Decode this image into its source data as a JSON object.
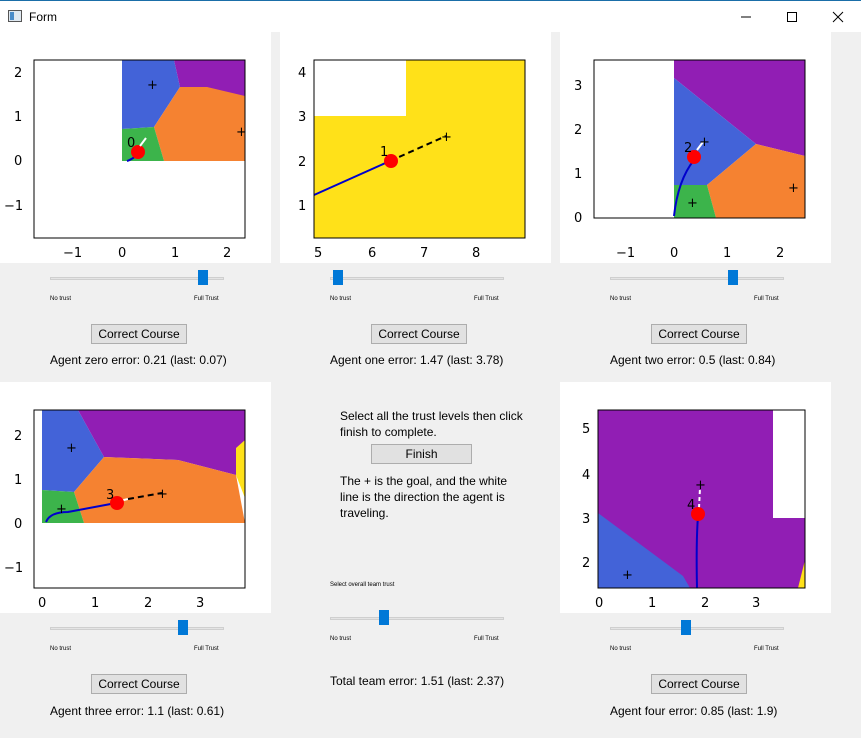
{
  "window": {
    "title": "Form",
    "minimize_icon": "minimize-icon",
    "maximize_icon": "maximize-icon",
    "close_icon": "close-icon"
  },
  "agents": [
    {
      "index_label": "0",
      "error_text": "Agent zero error: 0.21 (last: 0.07)",
      "trust_value": 0.9,
      "x_ticks": [
        "−1",
        "0",
        "1",
        "2"
      ],
      "y_ticks": [
        "2",
        "1",
        "0",
        "−1"
      ]
    },
    {
      "index_label": "1",
      "error_text": "Agent one error: 1.47 (last: 3.78)",
      "trust_value": 0.02,
      "x_ticks": [
        "5",
        "6",
        "7",
        "8"
      ],
      "y_ticks": [
        "4",
        "3",
        "2",
        "1"
      ]
    },
    {
      "index_label": "2",
      "error_text": "Agent two error: 0.5 (last: 0.84)",
      "trust_value": 0.72,
      "x_ticks": [
        "−1",
        "0",
        "1",
        "2"
      ],
      "y_ticks": [
        "3",
        "2",
        "1",
        "0"
      ]
    },
    {
      "index_label": "3",
      "error_text": "Agent three error: 1.1 (last: 0.61)",
      "trust_value": 0.78,
      "x_ticks": [
        "0",
        "1",
        "2",
        "3"
      ],
      "y_ticks": [
        "2",
        "1",
        "0",
        "−1"
      ]
    },
    {
      "index_label": "4",
      "error_text": "Agent four error: 0.85 (last: 1.9)",
      "trust_value": 0.43,
      "x_ticks": [
        "0",
        "1",
        "2",
        "3"
      ],
      "y_ticks": [
        "5",
        "4",
        "3",
        "2"
      ]
    }
  ],
  "slider_labels": {
    "min": "No trust",
    "max": "Full Trust"
  },
  "correct_course_label": "Correct Course",
  "center": {
    "instructions": "Select all the trust levels then click finish to complete.",
    "finish_label": "Finish",
    "legend_text": "The + is the goal, and the white line is the direction the agent is traveling.",
    "team_trust_label": "Select overall team trust",
    "team_trust_value": 0.3,
    "team_error_text": "Total team error: 1.51 (last: 2.37)"
  },
  "colors": {
    "blue": "#4363d8",
    "purple": "#911eb4",
    "orange": "#f58231",
    "green": "#3cb44b",
    "yellow": "#ffe119",
    "agent": "#ff0000",
    "path": "#0000cc",
    "slider": "#0078d7"
  }
}
